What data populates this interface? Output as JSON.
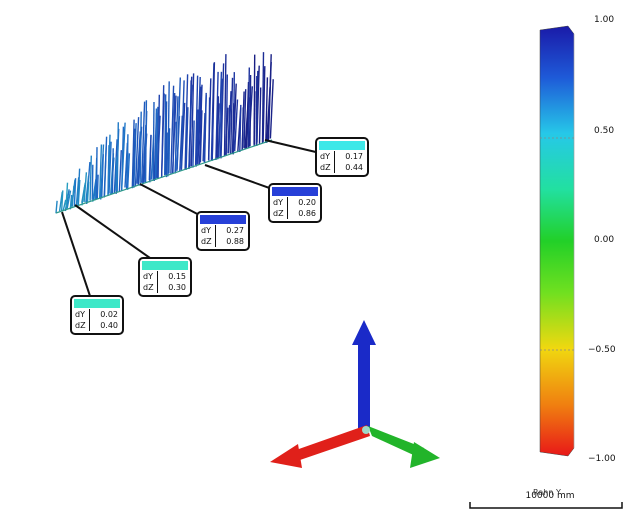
{
  "colorbar": {
    "ticks": [
      "1.00",
      "0.50",
      "0.00",
      "−0.50",
      "−1.00"
    ]
  },
  "callouts": [
    {
      "dY": "0.02",
      "dZ": "0.40",
      "color": "#3ee8c8"
    },
    {
      "dY": "0.15",
      "dZ": "0.30",
      "color": "#3ee8c8"
    },
    {
      "dY": "0.27",
      "dZ": "0.88",
      "color": "#2740d8"
    },
    {
      "dY": "0.20",
      "dZ": "0.86",
      "color": "#2740d8"
    },
    {
      "dY": "0.17",
      "dZ": "0.44",
      "color": "#3ee8e8"
    }
  ],
  "labels": {
    "dY": "dY",
    "dZ": "dZ"
  },
  "scale_bar": {
    "label": "10000 mm",
    "overlay": "Rahn Y"
  },
  "axes": {
    "x_color": "#e0201a",
    "y_color": "#22b42a",
    "z_color": "#1a2ac8"
  }
}
